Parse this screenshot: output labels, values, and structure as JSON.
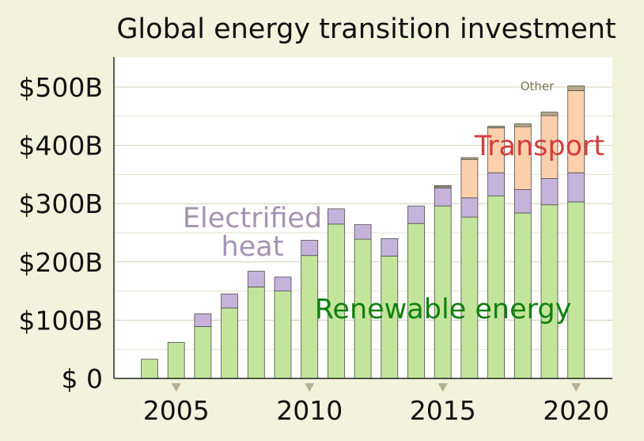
{
  "chart_data": {
    "type": "bar",
    "stacked": true,
    "title": "Global energy transition investment",
    "xlabel": "",
    "ylabel": "",
    "ylim": [
      0,
      500
    ],
    "y_ticks": [
      0,
      100,
      200,
      300,
      400,
      500
    ],
    "y_tick_labels": [
      "$ 0",
      "$100B",
      "$200B",
      "$300B",
      "$400B",
      "$500B"
    ],
    "x_tick_years": [
      2005,
      2010,
      2015,
      2020
    ],
    "x_tick_labels": [
      "2005",
      "2010",
      "2015",
      "2020"
    ],
    "grid": true,
    "categories": [
      2004,
      2005,
      2006,
      2007,
      2008,
      2009,
      2010,
      2011,
      2012,
      2013,
      2014,
      2015,
      2016,
      2017,
      2018,
      2019,
      2020
    ],
    "series": [
      {
        "name": "Renewable energy",
        "color": "#c3e59b",
        "label_color": "#108010",
        "values": [
          33,
          62,
          89,
          121,
          157,
          150,
          211,
          265,
          239,
          210,
          266,
          296,
          277,
          313,
          284,
          298,
          303
        ]
      },
      {
        "name": "Electrified heat",
        "color": "#c6b3dc",
        "label_color": "#a492b2",
        "values": [
          0,
          0,
          22,
          24,
          27,
          24,
          26,
          26,
          25,
          30,
          30,
          31,
          33,
          40,
          40,
          45,
          50
        ]
      },
      {
        "name": "Transport",
        "color": "#fdcfab",
        "label_color": "#d43c3c",
        "values": [
          0,
          0,
          0,
          0,
          0,
          0,
          0,
          0,
          0,
          0,
          0,
          2,
          66,
          77,
          108,
          108,
          141
        ]
      },
      {
        "name": "Other",
        "color": "#b6ab88",
        "label_color": "#7a7256",
        "values": [
          0,
          0,
          0,
          0,
          0,
          0,
          0,
          0,
          0,
          0,
          0,
          2,
          3,
          3,
          5,
          6,
          8
        ]
      }
    ],
    "series_labels": {
      "Renewable energy": "Renewable energy",
      "Electrified heat": "Electrified\nheat",
      "Transport": "Transport",
      "Other": "Other"
    },
    "colors": {
      "background": "#f2f3dc",
      "plot_background": "#ffffff",
      "gridline": "#d9d9c0",
      "tick_marker": "#b8b294",
      "bar_edge": "#4d4d4d"
    }
  }
}
